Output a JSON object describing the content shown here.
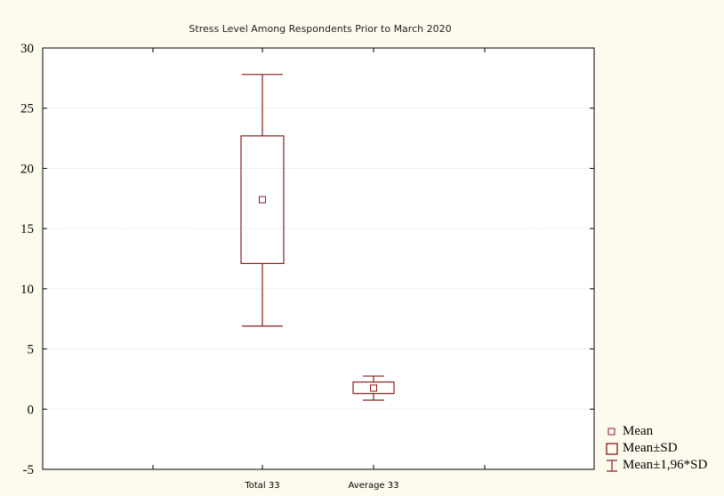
{
  "chart_data": {
    "type": "box",
    "title": "Stress Level Among Respondents Prior to March 2020",
    "xlabel": "",
    "ylabel": "",
    "ylim": [
      -5,
      30
    ],
    "yticks": [
      -5,
      0,
      5,
      10,
      15,
      20,
      25,
      30
    ],
    "categories": [
      "Total 33",
      "Average 33"
    ],
    "series": [
      {
        "name": "Mean",
        "values": [
          17.4,
          1.75
        ]
      },
      {
        "name": "Mean±SD",
        "low": [
          12.1,
          1.3
        ],
        "high": [
          22.7,
          2.25
        ]
      },
      {
        "name": "Mean±1,96*SD",
        "low": [
          6.9,
          0.75
        ],
        "high": [
          27.8,
          2.75
        ]
      }
    ],
    "grid": true,
    "legend_position": "bottom-right"
  },
  "colors": {
    "box": "#8b1a1a",
    "background": "#fdfbee",
    "plot_background": "#ffffff",
    "grid": "#c8c8c8"
  },
  "legend": {
    "mean": "Mean",
    "sd": "Mean±SD",
    "ci": "Mean±1,96*SD"
  }
}
